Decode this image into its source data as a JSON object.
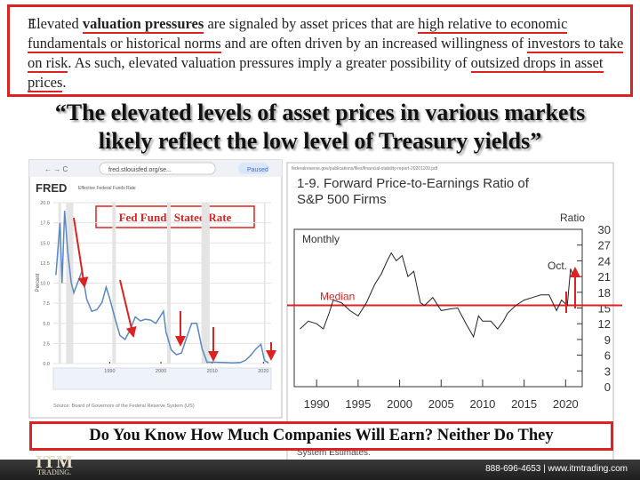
{
  "quote_box": {
    "number": "1.",
    "spans": [
      "Elevated ",
      "valuation pressures",
      " are signaled by asset prices that are ",
      "high relative to economic fundamentals or historical norms",
      " and are often driven by an increased willingness of ",
      "investors to take on risk",
      ". As such, elevated valuation pressures imply a greater possibility of ",
      "outsized drops in asset prices",
      "."
    ]
  },
  "headline": [
    "“The elevated levels of asset prices in various markets",
    "likely reflect the low level of Treasury yields”"
  ],
  "browser": {
    "url": "fred.stlouisfed.org/se...",
    "status": "Paused",
    "logo": "FRED"
  },
  "pdf_url": "federalreserve.gov/publications/files/financial-stability-report-20201109.pdf",
  "banner": "Do You Know How Much Companies Will Earn? Neither Do They",
  "footer": {
    "logo": "ITM",
    "logo_sub": "TRADING.",
    "contact": "888-696-4653 | www.itmtrading.com"
  },
  "chart_data": [
    {
      "type": "line",
      "title": "Effective Federal Funds Rate",
      "ylabel": "Percent",
      "source": "Source: Board of Governors of the Federal Reserve System (US)",
      "annotation": "Fed Funds Stated Rate",
      "color": "#5b87c2",
      "grid": true,
      "y_axis_side": "left",
      "xlim": [
        1979,
        2021.5
      ],
      "ylim": [
        0,
        20
      ],
      "xticks": [
        1990,
        2000,
        2010,
        2020
      ],
      "yticks": [
        {
          "value": 0,
          "label": "0.0"
        },
        {
          "value": 2.5,
          "label": "2.5"
        },
        {
          "value": 5,
          "label": "5.0"
        },
        {
          "value": 7.5,
          "label": "7.5"
        },
        {
          "value": 10,
          "label": "10.0"
        },
        {
          "value": 12.5,
          "label": "12.5"
        },
        {
          "value": 15,
          "label": "15.0"
        },
        {
          "value": 17.5,
          "label": "17.5"
        },
        {
          "value": 20,
          "label": "20.0"
        }
      ],
      "recessions": [
        [
          1980,
          1980.5
        ],
        [
          1981.5,
          1982.9
        ],
        [
          1990.5,
          1991.2
        ],
        [
          2001.2,
          2001.9
        ],
        [
          2007.9,
          2009.5
        ],
        [
          2020.1,
          2020.4
        ]
      ],
      "x": [
        1979.5,
        1980.3,
        1980.7,
        1981.2,
        1981.8,
        1982.5,
        1983,
        1984,
        1984.6,
        1985.5,
        1986.5,
        1987.5,
        1988.5,
        1989.3,
        1990,
        1991,
        1992,
        1993,
        1994,
        1995,
        1996,
        1997,
        1998,
        1999,
        2000.5,
        2001,
        2002,
        2003,
        2004,
        2005,
        2006,
        2007,
        2008,
        2009,
        2010,
        2012,
        2014,
        2015.5,
        2016.5,
        2017.5,
        2018.5,
        2019.5,
        2020.2,
        2021
      ],
      "values": [
        11,
        17.5,
        10,
        19,
        14,
        10,
        8.8,
        10.5,
        11.5,
        8,
        6.5,
        6.7,
        7.6,
        9.5,
        8.1,
        5.7,
        3.5,
        3.0,
        4.2,
        5.8,
        5.3,
        5.5,
        5.4,
        5.0,
        6.5,
        3.9,
        1.7,
        1.1,
        1.3,
        3.2,
        5.0,
        5.0,
        1.9,
        0.16,
        0.18,
        0.14,
        0.09,
        0.13,
        0.4,
        1.0,
        1.8,
        2.4,
        0.4,
        0.08
      ]
    },
    {
      "type": "line",
      "title": [
        "1-9. Forward Price-to-Earnings Ratio of",
        "S&P 500 Firms"
      ],
      "ylabel": "Ratio",
      "series_label": "Monthly",
      "median_label": "Median",
      "point_label": "Oct.",
      "source": "System Estimates.",
      "color": "#222222",
      "median_color": "#e02020",
      "grid": false,
      "y_axis_side": "right",
      "xlim": [
        1987.3,
        2022
      ],
      "ylim": [
        0,
        30
      ],
      "median": 15.5,
      "xticks": [
        1990,
        1995,
        2000,
        2005,
        2010,
        2015,
        2020
      ],
      "yticks": [
        0,
        3,
        6,
        9,
        12,
        15,
        18,
        21,
        24,
        27,
        30
      ],
      "x": [
        1988,
        1989,
        1990,
        1990.8,
        1991.5,
        1992,
        1993,
        1994,
        1995,
        1996,
        1997,
        1997.8,
        1998.5,
        1999,
        1999.6,
        2000.3,
        2001,
        2001.7,
        2002.5,
        2003,
        2004,
        2005,
        2006,
        2007,
        2008,
        2008.9,
        2009.5,
        2010,
        2011,
        2011.8,
        2012.5,
        2013,
        2014,
        2015,
        2016,
        2017,
        2018,
        2018.9,
        2019.5,
        2020.2,
        2020.6,
        2020.8,
        2021
      ],
      "values": [
        11,
        12.5,
        12,
        11,
        14,
        16.5,
        16,
        14.5,
        13.5,
        16,
        19.5,
        21.5,
        24,
        25.5,
        24,
        25,
        21,
        22,
        16,
        15.5,
        17,
        14.5,
        14.8,
        15,
        12,
        9.5,
        13.5,
        12.5,
        12.5,
        11,
        12.5,
        14,
        15.5,
        16.5,
        17,
        17.5,
        17.5,
        14.5,
        16.5,
        15.5,
        22.5,
        21.5,
        22
      ]
    }
  ]
}
